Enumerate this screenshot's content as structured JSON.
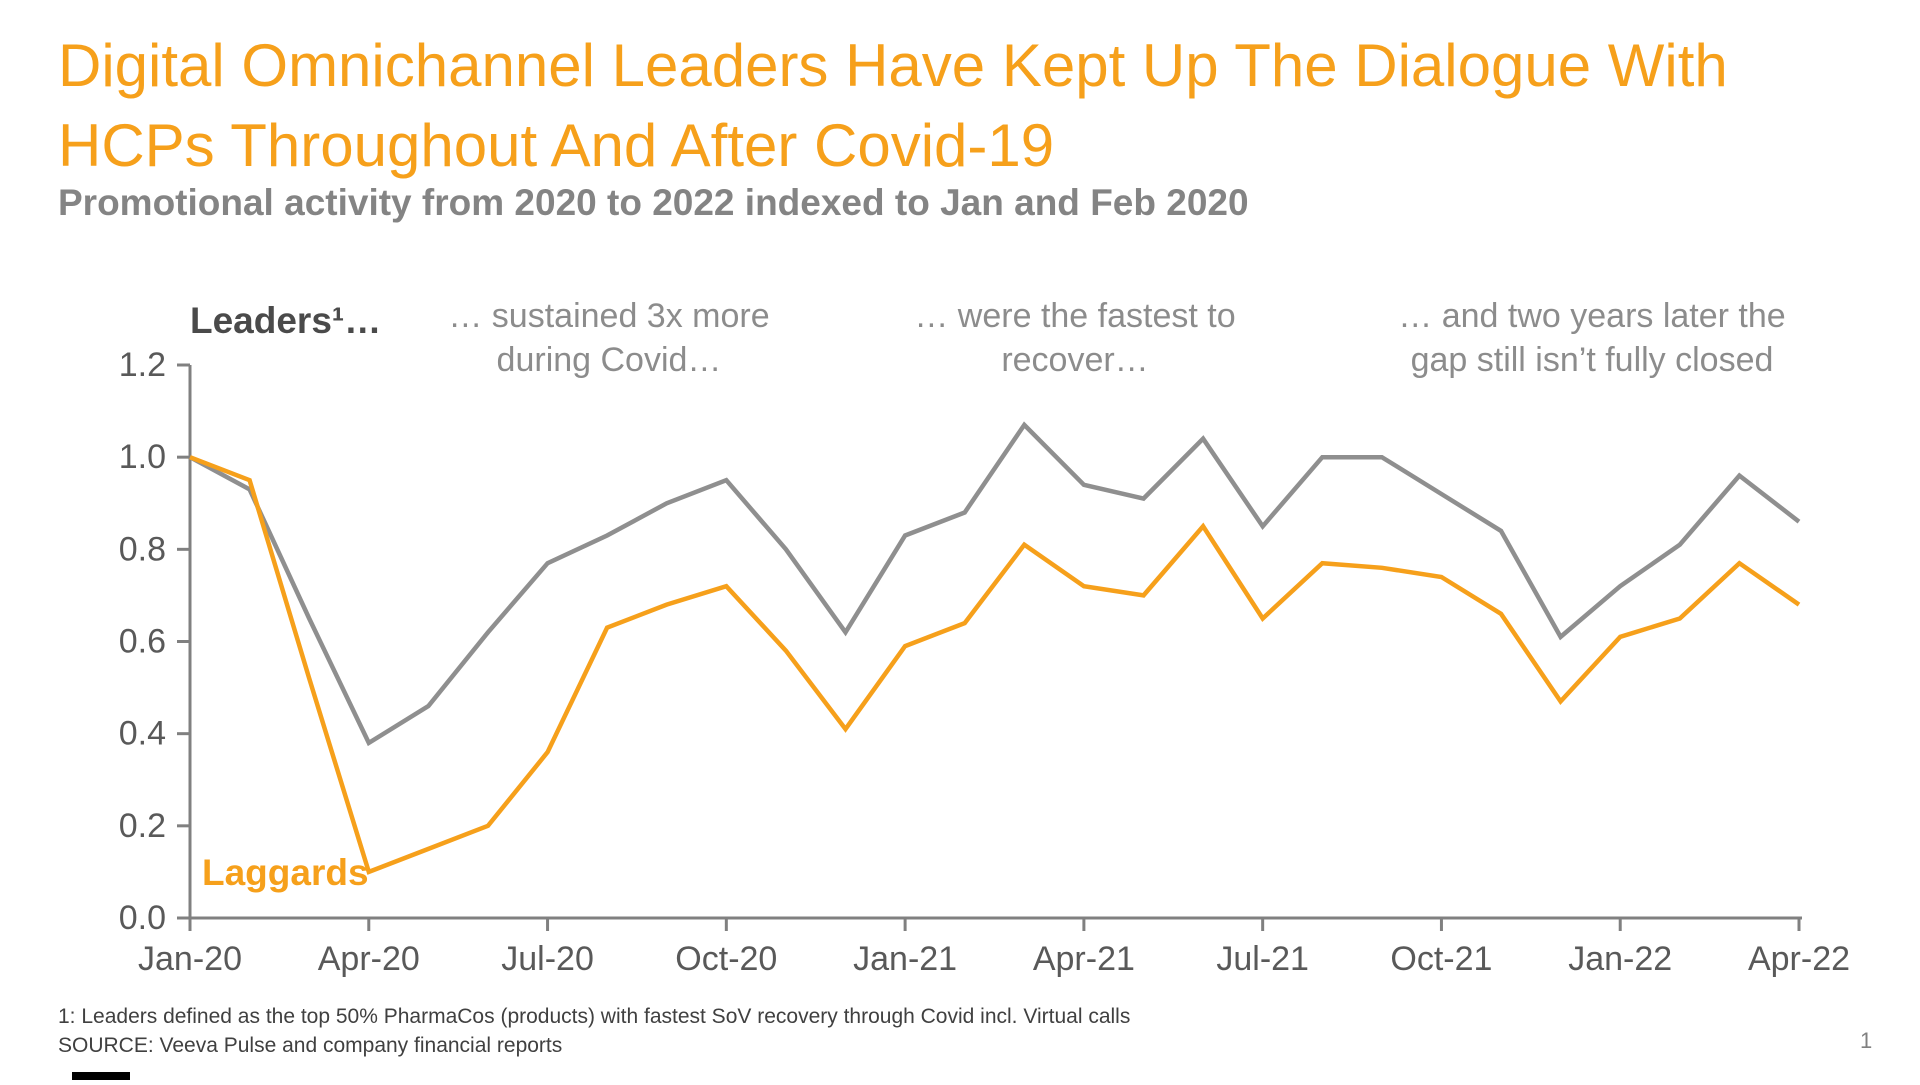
{
  "slide": {
    "title_lines": [
      "Digital Omnichannel Leaders Have Kept Up The Dialogue With",
      "HCPs Throughout And After Covid-19"
    ],
    "subtitle": "Promotional activity from 2020 to 2022 indexed to Jan and Feb 2020",
    "footnotes": [
      "1: Leaders defined as the top 50% PharmaCos (products) with fastest SoV recovery through Covid incl. Virtual calls",
      "SOURCE: Veeva Pulse and company financial reports"
    ],
    "page_number": "1"
  },
  "annotations": {
    "leaders_label": "Leaders¹…",
    "laggards_label": "Laggards",
    "callout_sustained": "… sustained 3x more during Covid…",
    "callout_recover": "… were the fastest to recover…",
    "callout_gap": "… and two years later the gap still isn’t fully closed"
  },
  "colors": {
    "accent_orange": "#F6A01B",
    "leaders_line_gray": "#8F8F8F",
    "axis_gray": "#808080",
    "tick_label_gray": "#595959",
    "callout_gray": "#8C8C8C",
    "leaders_label_dark": "#4A4A4A",
    "footnote_dark": "#404040"
  },
  "chart_data": {
    "type": "line",
    "categories": [
      "Jan-20",
      "Feb-20",
      "Mar-20",
      "Apr-20",
      "May-20",
      "Jun-20",
      "Jul-20",
      "Aug-20",
      "Sep-20",
      "Oct-20",
      "Nov-20",
      "Dec-20",
      "Jan-21",
      "Feb-21",
      "Mar-21",
      "Apr-21",
      "May-21",
      "Jun-21",
      "Jul-21",
      "Aug-21",
      "Sep-21",
      "Oct-21",
      "Nov-21",
      "Dec-21",
      "Jan-22",
      "Feb-22",
      "Mar-22",
      "Apr-22"
    ],
    "x_tick_step": 3,
    "series": [
      {
        "name": "Leaders",
        "color": "#8F8F8F",
        "values": [
          1.0,
          0.93,
          0.65,
          0.38,
          0.46,
          0.62,
          0.77,
          0.83,
          0.9,
          0.95,
          0.8,
          0.62,
          0.83,
          0.88,
          1.07,
          0.94,
          0.91,
          1.04,
          0.85,
          1.0,
          1.0,
          0.92,
          0.84,
          0.61,
          0.72,
          0.81,
          0.96,
          0.86
        ]
      },
      {
        "name": "Laggards",
        "color": "#F6A01B",
        "values": [
          1.0,
          0.95,
          0.52,
          0.1,
          0.15,
          0.2,
          0.36,
          0.63,
          0.68,
          0.72,
          0.58,
          0.41,
          0.59,
          0.64,
          0.81,
          0.72,
          0.7,
          0.85,
          0.65,
          0.77,
          0.76,
          0.74,
          0.66,
          0.47,
          0.61,
          0.65,
          0.77,
          0.68
        ]
      }
    ],
    "title": "",
    "xlabel": "",
    "ylabel": "",
    "ylim": [
      0,
      1.2
    ],
    "ytick_step": 0.2,
    "grid": false,
    "legend_position": "inline-labels"
  }
}
